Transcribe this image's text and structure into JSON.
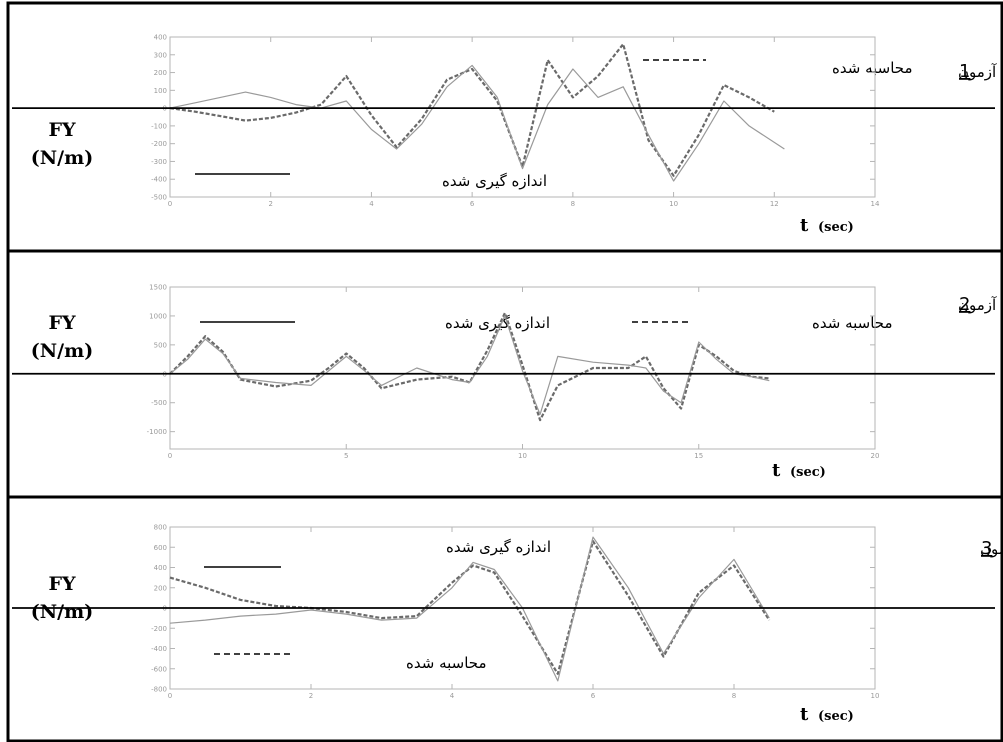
{
  "chart_data": [
    {
      "type": "line",
      "test_label": "آزمون",
      "test_number": "1",
      "ylabel_line1": "FY",
      "ylabel_line2": "(N/m)",
      "xlabel": "t",
      "xlabel_unit": "(sec)",
      "xlim": [
        0,
        14
      ],
      "ylim": [
        -500,
        400
      ],
      "x_ticks": [
        0,
        2,
        4,
        6,
        8,
        10,
        12,
        14
      ],
      "y_ticks": [
        400,
        300,
        200,
        100,
        0,
        -100,
        -200,
        -300,
        -400,
        -500
      ],
      "grid": false,
      "legend": [
        {
          "label": "محاسبه شده",
          "style": "dashed"
        },
        {
          "label": "اندازه گیری شده",
          "style": "solid"
        }
      ],
      "series": [
        {
          "name": "محاسبه شده",
          "style": "dashed",
          "x": [
            0,
            0.5,
            1,
            1.5,
            2,
            2.5,
            3,
            3.5,
            4,
            4.5,
            5,
            5.5,
            6,
            6.5,
            7,
            7.5,
            8,
            8.5,
            9,
            9.5,
            10,
            10.5,
            11,
            11.5,
            12
          ],
          "y": [
            0,
            -20,
            -45,
            -70,
            -55,
            -25,
            20,
            180,
            -40,
            -220,
            -60,
            160,
            220,
            40,
            -330,
            270,
            60,
            180,
            360,
            -180,
            -380,
            -150,
            130,
            60,
            -20
          ]
        },
        {
          "name": "اندازه گیری شده",
          "style": "solid",
          "x": [
            0,
            0.5,
            1,
            1.5,
            2,
            2.5,
            3,
            3.5,
            4,
            4.5,
            5,
            5.5,
            6,
            6.5,
            7,
            7.5,
            8,
            8.5,
            9,
            9.5,
            10,
            10.5,
            11,
            11.5,
            12.2
          ],
          "y": [
            0,
            30,
            60,
            90,
            60,
            20,
            0,
            40,
            -120,
            -230,
            -90,
            120,
            240,
            60,
            -340,
            20,
            220,
            60,
            120,
            -150,
            -410,
            -200,
            40,
            -100,
            -230
          ]
        }
      ]
    },
    {
      "type": "line",
      "test_label": "آزمون",
      "test_number": "2",
      "ylabel_line1": "FY",
      "ylabel_line2": "(N/m)",
      "xlabel": "t",
      "xlabel_unit": "(sec)",
      "xlim": [
        0,
        20
      ],
      "ylim": [
        -1300,
        1500
      ],
      "x_ticks": [
        0,
        5,
        10,
        15,
        20
      ],
      "y_ticks": [
        1500,
        1000,
        500,
        0,
        -500,
        -1000
      ],
      "grid": false,
      "legend": [
        {
          "label": "اندازه گیری شده",
          "style": "solid"
        },
        {
          "label": "محاسبه شده",
          "style": "dashed"
        }
      ],
      "series": [
        {
          "name": "محاسبه شده",
          "style": "dashed",
          "x": [
            0,
            0.5,
            1,
            1.5,
            2,
            3,
            4,
            4.5,
            5,
            5.5,
            6,
            7,
            8,
            8.5,
            9,
            9.5,
            10,
            10.5,
            11,
            12,
            13,
            13.5,
            14,
            14.5,
            15,
            15.5,
            16,
            16.5,
            17
          ],
          "y": [
            0,
            300,
            650,
            380,
            -100,
            -220,
            -120,
            100,
            350,
            100,
            -250,
            -100,
            -50,
            -150,
            400,
            1050,
            150,
            -800,
            -200,
            100,
            100,
            300,
            -250,
            -600,
            500,
            300,
            50,
            -50,
            -80
          ]
        },
        {
          "name": "اندازه گیری شده",
          "style": "solid",
          "x": [
            0,
            0.5,
            1,
            1.5,
            2,
            3,
            4,
            4.5,
            5,
            5.5,
            6,
            7,
            8,
            8.5,
            9,
            9.5,
            10,
            10.5,
            11,
            12,
            13,
            13.5,
            14,
            14.5,
            15,
            15.5,
            16,
            16.5,
            17
          ],
          "y": [
            0,
            250,
            600,
            350,
            -80,
            -150,
            -200,
            50,
            300,
            60,
            -200,
            100,
            -100,
            -150,
            300,
            1000,
            50,
            -700,
            300,
            200,
            150,
            100,
            -300,
            -500,
            550,
            250,
            0,
            -50,
            -120
          ]
        }
      ]
    },
    {
      "type": "line",
      "test_label": "آزمون",
      "test_number": "3",
      "ylabel_line1": "FY",
      "ylabel_line2": "(N/m)",
      "xlabel": "t",
      "xlabel_unit": "(sec)",
      "xlim": [
        0,
        10
      ],
      "ylim": [
        -800,
        800
      ],
      "x_ticks": [
        0,
        2,
        4,
        6,
        8,
        10
      ],
      "y_ticks": [
        800,
        600,
        400,
        200,
        0,
        -200,
        -400,
        -600,
        -800
      ],
      "grid": false,
      "legend": [
        {
          "label": "اندازه گیری شده",
          "style": "solid"
        },
        {
          "label": "محاسبه شده",
          "style": "dashed"
        }
      ],
      "series": [
        {
          "name": "محاسبه شده",
          "style": "dashed",
          "x": [
            0,
            0.5,
            1,
            1.5,
            2,
            2.5,
            3,
            3.5,
            4,
            4.3,
            4.6,
            5,
            5.5,
            6,
            6.5,
            7,
            7.5,
            8,
            8.5
          ],
          "y": [
            300,
            200,
            80,
            20,
            0,
            -40,
            -100,
            -80,
            250,
            420,
            350,
            -80,
            -650,
            660,
            120,
            -480,
            150,
            420,
            -120
          ]
        },
        {
          "name": "اندازه گیری شده",
          "style": "solid",
          "x": [
            0,
            0.5,
            1,
            1.5,
            2,
            2.5,
            3,
            3.5,
            4,
            4.3,
            4.6,
            5,
            5.5,
            6,
            6.5,
            7,
            7.5,
            8,
            8.5
          ],
          "y": [
            -150,
            -120,
            -80,
            -60,
            -20,
            -60,
            -120,
            -100,
            200,
            450,
            380,
            0,
            -720,
            700,
            200,
            -450,
            100,
            480,
            -100
          ]
        }
      ]
    }
  ]
}
